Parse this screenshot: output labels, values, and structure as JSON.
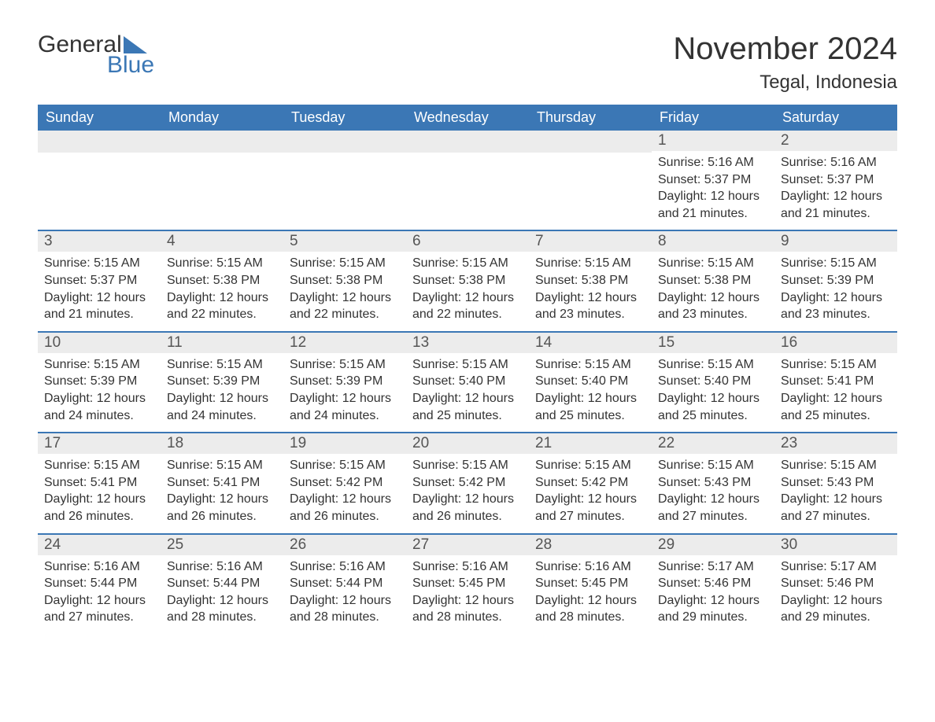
{
  "logo": {
    "text1": "General",
    "text2": "Blue"
  },
  "title": "November 2024",
  "location": "Tegal, Indonesia",
  "colors": {
    "header_bg": "#3b77b5",
    "header_text": "#ffffff",
    "daynum_bg": "#ececec",
    "rule": "#3b77b5",
    "body_text": "#333333",
    "background": "#ffffff"
  },
  "fonts": {
    "title_size": 40,
    "location_size": 24,
    "weekday_size": 18,
    "daynum_size": 19,
    "body_size": 16,
    "family": "Arial"
  },
  "weekdays": [
    "Sunday",
    "Monday",
    "Tuesday",
    "Wednesday",
    "Thursday",
    "Friday",
    "Saturday"
  ],
  "weeks": [
    [
      {
        "blank": true
      },
      {
        "blank": true
      },
      {
        "blank": true
      },
      {
        "blank": true
      },
      {
        "blank": true
      },
      {
        "n": "1",
        "sunrise": "Sunrise: 5:16 AM",
        "sunset": "Sunset: 5:37 PM",
        "d1": "Daylight: 12 hours",
        "d2": "and 21 minutes."
      },
      {
        "n": "2",
        "sunrise": "Sunrise: 5:16 AM",
        "sunset": "Sunset: 5:37 PM",
        "d1": "Daylight: 12 hours",
        "d2": "and 21 minutes."
      }
    ],
    [
      {
        "n": "3",
        "sunrise": "Sunrise: 5:15 AM",
        "sunset": "Sunset: 5:37 PM",
        "d1": "Daylight: 12 hours",
        "d2": "and 21 minutes."
      },
      {
        "n": "4",
        "sunrise": "Sunrise: 5:15 AM",
        "sunset": "Sunset: 5:38 PM",
        "d1": "Daylight: 12 hours",
        "d2": "and 22 minutes."
      },
      {
        "n": "5",
        "sunrise": "Sunrise: 5:15 AM",
        "sunset": "Sunset: 5:38 PM",
        "d1": "Daylight: 12 hours",
        "d2": "and 22 minutes."
      },
      {
        "n": "6",
        "sunrise": "Sunrise: 5:15 AM",
        "sunset": "Sunset: 5:38 PM",
        "d1": "Daylight: 12 hours",
        "d2": "and 22 minutes."
      },
      {
        "n": "7",
        "sunrise": "Sunrise: 5:15 AM",
        "sunset": "Sunset: 5:38 PM",
        "d1": "Daylight: 12 hours",
        "d2": "and 23 minutes."
      },
      {
        "n": "8",
        "sunrise": "Sunrise: 5:15 AM",
        "sunset": "Sunset: 5:38 PM",
        "d1": "Daylight: 12 hours",
        "d2": "and 23 minutes."
      },
      {
        "n": "9",
        "sunrise": "Sunrise: 5:15 AM",
        "sunset": "Sunset: 5:39 PM",
        "d1": "Daylight: 12 hours",
        "d2": "and 23 minutes."
      }
    ],
    [
      {
        "n": "10",
        "sunrise": "Sunrise: 5:15 AM",
        "sunset": "Sunset: 5:39 PM",
        "d1": "Daylight: 12 hours",
        "d2": "and 24 minutes."
      },
      {
        "n": "11",
        "sunrise": "Sunrise: 5:15 AM",
        "sunset": "Sunset: 5:39 PM",
        "d1": "Daylight: 12 hours",
        "d2": "and 24 minutes."
      },
      {
        "n": "12",
        "sunrise": "Sunrise: 5:15 AM",
        "sunset": "Sunset: 5:39 PM",
        "d1": "Daylight: 12 hours",
        "d2": "and 24 minutes."
      },
      {
        "n": "13",
        "sunrise": "Sunrise: 5:15 AM",
        "sunset": "Sunset: 5:40 PM",
        "d1": "Daylight: 12 hours",
        "d2": "and 25 minutes."
      },
      {
        "n": "14",
        "sunrise": "Sunrise: 5:15 AM",
        "sunset": "Sunset: 5:40 PM",
        "d1": "Daylight: 12 hours",
        "d2": "and 25 minutes."
      },
      {
        "n": "15",
        "sunrise": "Sunrise: 5:15 AM",
        "sunset": "Sunset: 5:40 PM",
        "d1": "Daylight: 12 hours",
        "d2": "and 25 minutes."
      },
      {
        "n": "16",
        "sunrise": "Sunrise: 5:15 AM",
        "sunset": "Sunset: 5:41 PM",
        "d1": "Daylight: 12 hours",
        "d2": "and 25 minutes."
      }
    ],
    [
      {
        "n": "17",
        "sunrise": "Sunrise: 5:15 AM",
        "sunset": "Sunset: 5:41 PM",
        "d1": "Daylight: 12 hours",
        "d2": "and 26 minutes."
      },
      {
        "n": "18",
        "sunrise": "Sunrise: 5:15 AM",
        "sunset": "Sunset: 5:41 PM",
        "d1": "Daylight: 12 hours",
        "d2": "and 26 minutes."
      },
      {
        "n": "19",
        "sunrise": "Sunrise: 5:15 AM",
        "sunset": "Sunset: 5:42 PM",
        "d1": "Daylight: 12 hours",
        "d2": "and 26 minutes."
      },
      {
        "n": "20",
        "sunrise": "Sunrise: 5:15 AM",
        "sunset": "Sunset: 5:42 PM",
        "d1": "Daylight: 12 hours",
        "d2": "and 26 minutes."
      },
      {
        "n": "21",
        "sunrise": "Sunrise: 5:15 AM",
        "sunset": "Sunset: 5:42 PM",
        "d1": "Daylight: 12 hours",
        "d2": "and 27 minutes."
      },
      {
        "n": "22",
        "sunrise": "Sunrise: 5:15 AM",
        "sunset": "Sunset: 5:43 PM",
        "d1": "Daylight: 12 hours",
        "d2": "and 27 minutes."
      },
      {
        "n": "23",
        "sunrise": "Sunrise: 5:15 AM",
        "sunset": "Sunset: 5:43 PM",
        "d1": "Daylight: 12 hours",
        "d2": "and 27 minutes."
      }
    ],
    [
      {
        "n": "24",
        "sunrise": "Sunrise: 5:16 AM",
        "sunset": "Sunset: 5:44 PM",
        "d1": "Daylight: 12 hours",
        "d2": "and 27 minutes."
      },
      {
        "n": "25",
        "sunrise": "Sunrise: 5:16 AM",
        "sunset": "Sunset: 5:44 PM",
        "d1": "Daylight: 12 hours",
        "d2": "and 28 minutes."
      },
      {
        "n": "26",
        "sunrise": "Sunrise: 5:16 AM",
        "sunset": "Sunset: 5:44 PM",
        "d1": "Daylight: 12 hours",
        "d2": "and 28 minutes."
      },
      {
        "n": "27",
        "sunrise": "Sunrise: 5:16 AM",
        "sunset": "Sunset: 5:45 PM",
        "d1": "Daylight: 12 hours",
        "d2": "and 28 minutes."
      },
      {
        "n": "28",
        "sunrise": "Sunrise: 5:16 AM",
        "sunset": "Sunset: 5:45 PM",
        "d1": "Daylight: 12 hours",
        "d2": "and 28 minutes."
      },
      {
        "n": "29",
        "sunrise": "Sunrise: 5:17 AM",
        "sunset": "Sunset: 5:46 PM",
        "d1": "Daylight: 12 hours",
        "d2": "and 29 minutes."
      },
      {
        "n": "30",
        "sunrise": "Sunrise: 5:17 AM",
        "sunset": "Sunset: 5:46 PM",
        "d1": "Daylight: 12 hours",
        "d2": "and 29 minutes."
      }
    ]
  ]
}
